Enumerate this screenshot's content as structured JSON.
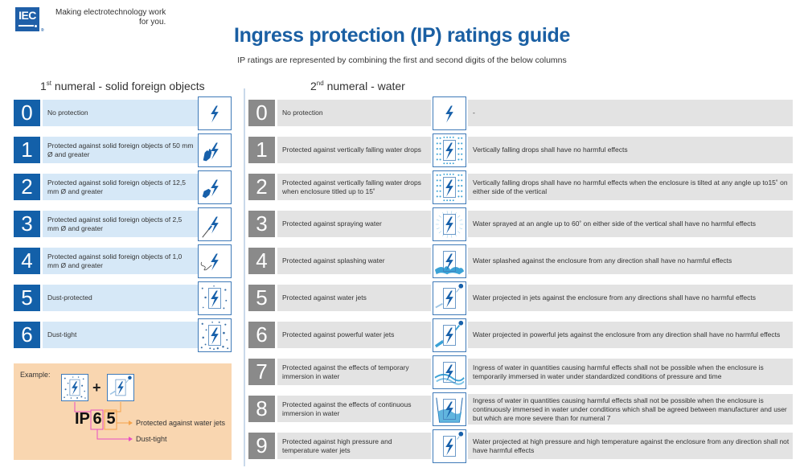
{
  "header": {
    "logo_text": "IEC",
    "logo_registered": "®",
    "tagline_line1": "Making  electrotechnology work",
    "tagline_line2": "for you.",
    "title": "Ingress protection (IP) ratings guide",
    "subtitle": "IP ratings are represented by combining the first and second digits of the below columns"
  },
  "colors": {
    "brand_blue": "#1360a9",
    "title_blue": "#1a5fa3",
    "solid_row_bg": "#d6e8f7",
    "water_num_gray": "#8a8a8a",
    "water_row_bg": "#e3e3e3",
    "example_bg": "#f9d6b0",
    "example_pink": "#e84fc3",
    "example_orange": "#f5a34a"
  },
  "solids": {
    "heading_number": "1",
    "heading_ordinal": "st",
    "heading_text": "numeral - solid foreign objects",
    "rows": [
      {
        "digit": "0",
        "desc": "No protection",
        "icon": "bolt-icon"
      },
      {
        "digit": "1",
        "desc": "Protected against solid foreign objects of 50 mm Ø and greater",
        "icon": "hand-bolt-icon"
      },
      {
        "digit": "2",
        "desc": "Protected against solid foreign objects of 12,5 mm Ø and greater",
        "icon": "finger-bolt-icon"
      },
      {
        "digit": "3",
        "desc": "Protected against solid foreign objects of 2,5 mm Ø and greater",
        "icon": "tool-bolt-icon"
      },
      {
        "digit": "4",
        "desc": "Protected against solid foreign objects of 1,0 mm Ø and greater",
        "icon": "wire-bolt-icon"
      },
      {
        "digit": "5",
        "desc": "Dust-protected",
        "icon": "dust-protected-icon"
      },
      {
        "digit": "6",
        "desc": "Dust-tight",
        "icon": "dust-tight-icon"
      }
    ]
  },
  "water": {
    "heading_number": "2",
    "heading_ordinal": "nd",
    "heading_text": "numeral - water",
    "rows": [
      {
        "digit": "0",
        "desc": "No protection",
        "icon": "bolt-icon",
        "detail": "-"
      },
      {
        "digit": "1",
        "desc": "Protected against vertically falling water drops",
        "icon": "vertical-drops-icon",
        "detail": "Vertically falling drops shall have no harmful effects"
      },
      {
        "digit": "2",
        "desc": "Protected against vertically falling water drops when enclosure titled up to 15˚",
        "icon": "tilted-drops-icon",
        "detail": "Vertically falling drops shall have no harmful effects when the enclosure is tilted at any angle up to15˚ on either side of the vertical"
      },
      {
        "digit": "3",
        "desc": "Protected against spraying water",
        "icon": "spray-icon",
        "detail": "Water sprayed at an angle up to 60˚ on either side of the vertical shall have no harmful effects"
      },
      {
        "digit": "4",
        "desc": "Protected against splashing water",
        "icon": "splash-icon",
        "detail": "Water splashed against the enclosure from any direction shall have no harmful effects"
      },
      {
        "digit": "5",
        "desc": "Protected against water jets",
        "icon": "water-jet-icon",
        "detail": "Water projected in jets against the enclosure from any directions shall have no harmful effects"
      },
      {
        "digit": "6",
        "desc": "Protected against powerful water jets",
        "icon": "powerful-jet-icon",
        "detail": "Water projected in powerful jets against the enclosure from any direction shall have no harmful effects"
      },
      {
        "digit": "7",
        "desc": "Protected against the effects of temporary immersion in water",
        "icon": "temporary-immersion-icon",
        "detail": "Ingress of water in quantities causing harmful effects shall not be possible when the enclosure is temporarily immersed in water under standardized conditions of pressure and time"
      },
      {
        "digit": "8",
        "desc": "Protected against the effects of continuous immersion in water",
        "icon": "continuous-immersion-icon",
        "detail": "Ingress of water in quantities causing harmful effects shall not be possible when the enclosure is continuously immersed in water under conditions which shall be agreed between manufacturer and user but which are more severe than for numeral 7"
      },
      {
        "digit": "9",
        "desc": "Protected against high pressure and temperature water jets",
        "icon": "high-pressure-jet-icon",
        "detail": "Water projected at high pressure and high temperature against the enclosure from any direction shall not have harmful effects"
      }
    ]
  },
  "example": {
    "label": "Example:",
    "plus": "+",
    "prefix": "IP",
    "first_digit": "6",
    "second_digit": "5",
    "second_meaning": "Protected against water jets",
    "first_meaning": "Dust-tight"
  }
}
